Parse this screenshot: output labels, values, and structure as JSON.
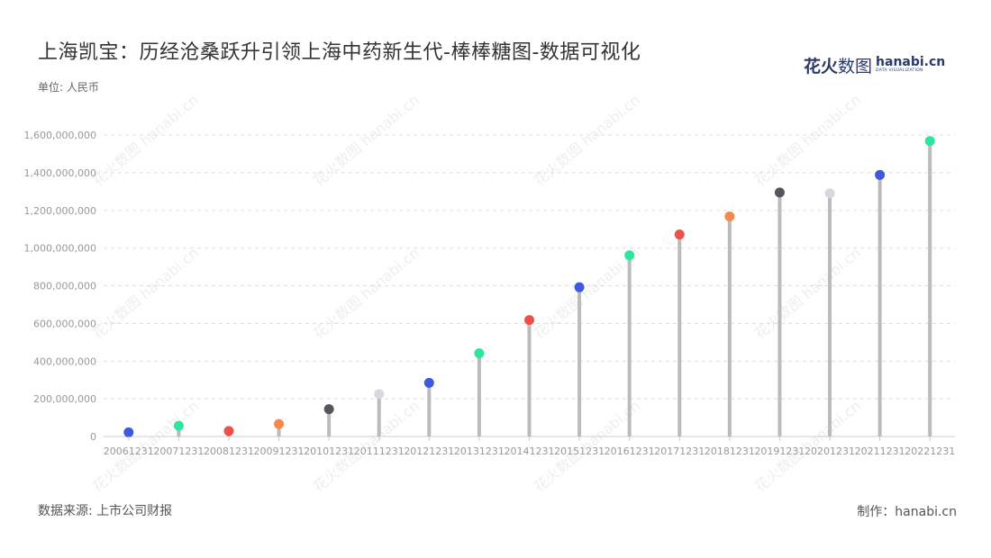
{
  "title": "上海凯宝：历经沧桑跃升引领上海中药新生代-棒棒糖图-数据可视化",
  "unit": "单位: 人民币",
  "logo": {
    "cn_bold": "花火",
    "cn_light": "数图",
    "en": "hanabi.cn",
    "en_sub": "DATA VISUALIZATION"
  },
  "source": "数据来源: 上市公司财报",
  "credit": "制作：hanabi.cn",
  "chart_data": {
    "type": "lollipop",
    "categories": [
      "20061231",
      "20071231",
      "20081231",
      "20091231",
      "20101231",
      "20111231",
      "20121231",
      "20131231",
      "20141231",
      "20151231",
      "20161231",
      "20171231",
      "20181231",
      "20191231",
      "20201231",
      "20211231",
      "20221231"
    ],
    "values": [
      22000000,
      57000000,
      29000000,
      66000000,
      145000000,
      225000000,
      285000000,
      442000000,
      618000000,
      792000000,
      962000000,
      1072000000,
      1168000000,
      1295000000,
      1290000000,
      1388000000,
      1568000000
    ],
    "ylim": [
      0,
      1600000000
    ],
    "yticks": [
      0,
      200000000,
      400000000,
      600000000,
      800000000,
      1000000000,
      1200000000,
      1400000000,
      1600000000
    ],
    "ytick_labels": [
      "0",
      "200,000,000",
      "400,000,000",
      "600,000,000",
      "800,000,000",
      "1,000,000,000",
      "1,200,000,000",
      "1,400,000,000",
      "1,600,000,000"
    ],
    "dot_colors": [
      "#3d59e0",
      "#2ee59d",
      "#f0504a",
      "#f5894d",
      "#55555f",
      "#d8d8df",
      "#3d59e0",
      "#2ee59d",
      "#f0504a",
      "#3d59e0",
      "#2ee59d",
      "#f0504a",
      "#f5894d",
      "#55555f",
      "#d8d8df",
      "#3d59e0",
      "#2ee59d"
    ],
    "stem_color": "#bbbbbb",
    "grid": true
  },
  "watermark_text": "花火数图 hanabi.cn"
}
